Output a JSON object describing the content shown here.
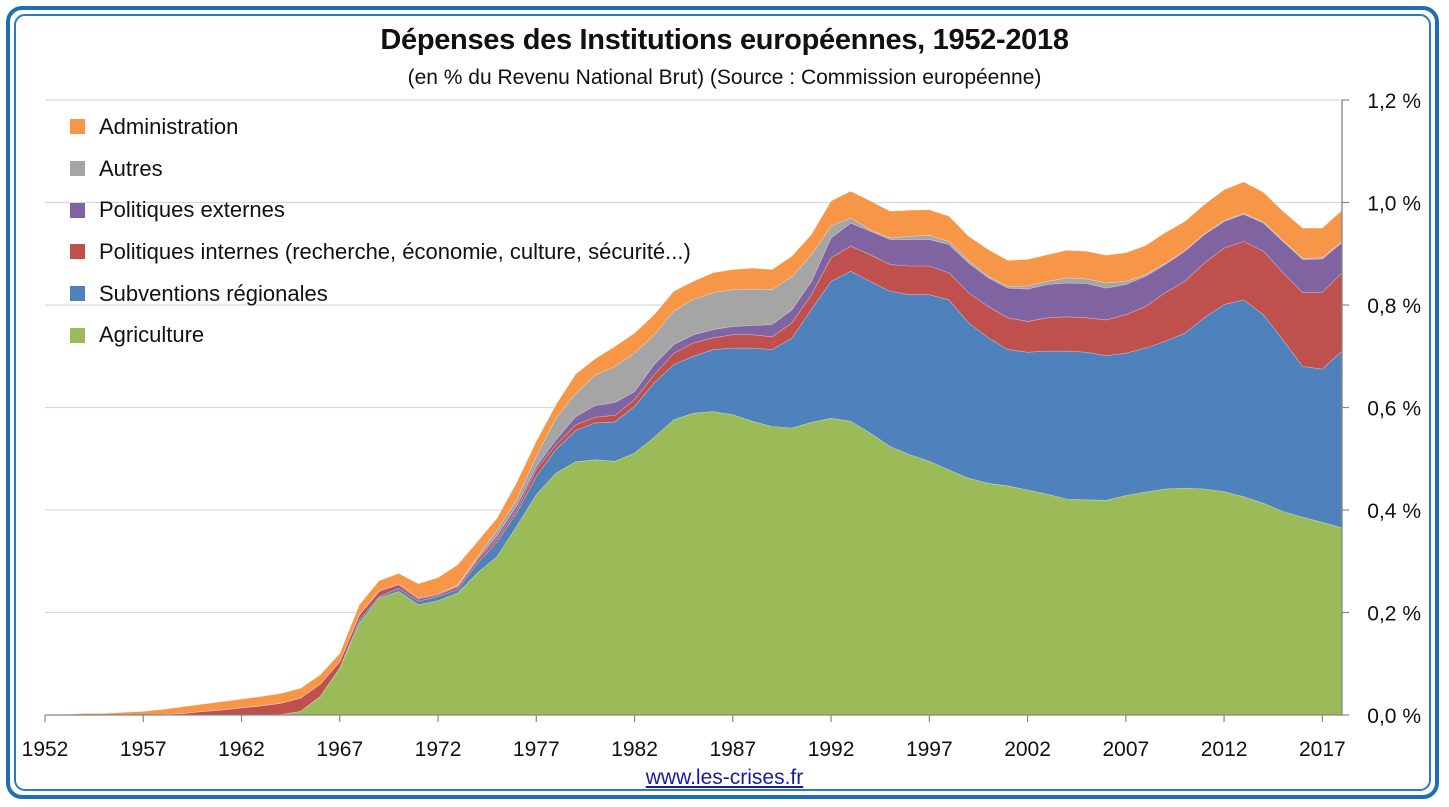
{
  "title": "Dépenses des Institutions européennes, 1952-2018",
  "subtitle": "(en % du Revenu National Brut) (Source : Commission européenne)",
  "footer_link": "www.les-crises.fr",
  "frame_color": "#1b6fb5",
  "chart_data": {
    "type": "area",
    "stacked": true,
    "title": "Dépenses des Institutions européennes, 1952-2018",
    "subtitle": "(en % du Revenu National Brut) (Source : Commission européenne)",
    "xlabel": "",
    "ylabel": "",
    "x": [
      1952,
      1953,
      1954,
      1955,
      1956,
      1957,
      1958,
      1959,
      1960,
      1961,
      1962,
      1963,
      1964,
      1965,
      1966,
      1967,
      1968,
      1969,
      1970,
      1971,
      1972,
      1973,
      1974,
      1975,
      1976,
      1977,
      1978,
      1979,
      1980,
      1981,
      1982,
      1983,
      1984,
      1985,
      1986,
      1987,
      1988,
      1989,
      1990,
      1991,
      1992,
      1993,
      1994,
      1995,
      1996,
      1997,
      1998,
      1999,
      2000,
      2001,
      2002,
      2003,
      2004,
      2005,
      2006,
      2007,
      2008,
      2009,
      2010,
      2011,
      2012,
      2013,
      2014,
      2015,
      2016,
      2017,
      2018
    ],
    "xticks": [
      "1952",
      "1957",
      "1962",
      "1967",
      "1972",
      "1977",
      "1982",
      "1987",
      "1992",
      "1997",
      "2002",
      "2007",
      "2012",
      "2017"
    ],
    "ylim": [
      0,
      1.2
    ],
    "yticks": [
      0,
      0.2,
      0.4,
      0.6,
      0.8,
      1.0,
      1.2
    ],
    "ytick_labels": [
      "0,0 %",
      "0,2 %",
      "0,4 %",
      "0,6 %",
      "0,8 %",
      "1,0 %",
      "1,2 %"
    ],
    "y_axis_side": "right",
    "grid": true,
    "legend_position": "top-left",
    "series": [
      {
        "name": "Agriculture",
        "color": "#9bbb59",
        "values": [
          0,
          0,
          0,
          0,
          0,
          0,
          0,
          0,
          0,
          0,
          0,
          0,
          0.001,
          0.007,
          0.036,
          0.091,
          0.179,
          0.228,
          0.241,
          0.215,
          0.223,
          0.238,
          0.277,
          0.309,
          0.368,
          0.43,
          0.472,
          0.494,
          0.498,
          0.495,
          0.511,
          0.542,
          0.576,
          0.589,
          0.592,
          0.586,
          0.573,
          0.563,
          0.56,
          0.571,
          0.579,
          0.573,
          0.55,
          0.524,
          0.508,
          0.495,
          0.478,
          0.462,
          0.452,
          0.447,
          0.439,
          0.431,
          0.421,
          0.42,
          0.419,
          0.428,
          0.435,
          0.441,
          0.443,
          0.441,
          0.436,
          0.426,
          0.413,
          0.397,
          0.386,
          0.376,
          0.365
        ]
      },
      {
        "name": "Subventions régionales",
        "color": "#4f81bd",
        "values": [
          0,
          0,
          0,
          0,
          0,
          0,
          0,
          0,
          0,
          0,
          0,
          0,
          0,
          0,
          0,
          0.001,
          0.006,
          0.003,
          0.006,
          0.007,
          0.008,
          0.007,
          0.019,
          0.029,
          0.026,
          0.036,
          0.046,
          0.061,
          0.072,
          0.077,
          0.091,
          0.106,
          0.108,
          0.111,
          0.121,
          0.13,
          0.143,
          0.15,
          0.175,
          0.22,
          0.267,
          0.293,
          0.296,
          0.303,
          0.312,
          0.325,
          0.332,
          0.303,
          0.284,
          0.266,
          0.269,
          0.279,
          0.289,
          0.288,
          0.282,
          0.278,
          0.281,
          0.288,
          0.302,
          0.334,
          0.365,
          0.384,
          0.368,
          0.335,
          0.294,
          0.299,
          0.345
        ]
      },
      {
        "name": "Politiques internes (recherche, économie, culture, sécurité...)",
        "color": "#c0504d",
        "values": [
          0,
          0,
          0,
          0,
          0,
          0,
          0.001,
          0.003,
          0.007,
          0.01,
          0.014,
          0.018,
          0.022,
          0.026,
          0.024,
          0.012,
          0.01,
          0.01,
          0.007,
          0.004,
          0.003,
          0.005,
          0.006,
          0.006,
          0.006,
          0.013,
          0.009,
          0.011,
          0.011,
          0.013,
          0.013,
          0.016,
          0.022,
          0.026,
          0.023,
          0.026,
          0.026,
          0.025,
          0.03,
          0.029,
          0.046,
          0.049,
          0.052,
          0.052,
          0.056,
          0.056,
          0.053,
          0.059,
          0.061,
          0.062,
          0.06,
          0.065,
          0.067,
          0.067,
          0.07,
          0.075,
          0.081,
          0.095,
          0.101,
          0.107,
          0.11,
          0.114,
          0.124,
          0.131,
          0.144,
          0.15,
          0.153
        ]
      },
      {
        "name": "Politiques externes",
        "color": "#8064a2",
        "values": [
          0,
          0,
          0,
          0,
          0,
          0,
          0,
          0,
          0,
          0,
          0,
          0,
          0,
          0,
          0,
          0,
          0.001,
          0.002,
          0.002,
          0.002,
          0.002,
          0.002,
          0.003,
          0.006,
          0.008,
          0.006,
          0.01,
          0.016,
          0.023,
          0.025,
          0.016,
          0.02,
          0.017,
          0.016,
          0.016,
          0.016,
          0.018,
          0.024,
          0.025,
          0.026,
          0.039,
          0.045,
          0.046,
          0.049,
          0.052,
          0.052,
          0.055,
          0.058,
          0.056,
          0.058,
          0.063,
          0.065,
          0.066,
          0.067,
          0.062,
          0.059,
          0.059,
          0.055,
          0.059,
          0.0555,
          0.052,
          0.053,
          0.055,
          0.061,
          0.065,
          0.065,
          0.059
        ]
      },
      {
        "name": "Autres",
        "color": "#a5a5a5",
        "values": [
          0,
          0,
          0,
          0,
          0,
          0,
          0,
          0,
          0,
          0,
          0,
          0,
          0,
          0,
          0,
          0,
          0,
          0,
          0,
          0,
          0,
          0.002,
          0.003,
          0.011,
          0.012,
          0.02,
          0.042,
          0.045,
          0.059,
          0.07,
          0.075,
          0.058,
          0.065,
          0.069,
          0.072,
          0.072,
          0.071,
          0.068,
          0.065,
          0.052,
          0.023,
          0.01,
          0.003,
          0.003,
          0.006,
          0.008,
          0.006,
          0.004,
          0.003,
          0.003,
          0.006,
          0.006,
          0.01,
          0.009,
          0.01,
          0.006,
          0.003,
          0.002,
          0.001,
          0.0015,
          0.002,
          0.002,
          0.002,
          0.002,
          0.002,
          0.002,
          0.002
        ]
      },
      {
        "name": "Administration",
        "color": "#f79646",
        "values": [
          0,
          0.001,
          0.003,
          0.003,
          0.005,
          0.007,
          0.01,
          0.013,
          0.014,
          0.016,
          0.017,
          0.018,
          0.019,
          0.019,
          0.018,
          0.016,
          0.019,
          0.019,
          0.02,
          0.028,
          0.032,
          0.039,
          0.03,
          0.023,
          0.033,
          0.029,
          0.026,
          0.038,
          0.032,
          0.039,
          0.039,
          0.039,
          0.039,
          0.035,
          0.039,
          0.039,
          0.041,
          0.039,
          0.04,
          0.0395,
          0.049,
          0.052,
          0.056,
          0.052,
          0.051,
          0.05,
          0.049,
          0.048,
          0.052,
          0.051,
          0.052,
          0.052,
          0.054,
          0.054,
          0.054,
          0.056,
          0.057,
          0.06,
          0.057,
          0.057,
          0.06,
          0.061,
          0.058,
          0.057,
          0.059,
          0.058,
          0.061
        ]
      }
    ]
  },
  "legend": [
    {
      "label": "Administration",
      "color": "#f79646"
    },
    {
      "label": "Autres",
      "color": "#a5a5a5"
    },
    {
      "label": "Politiques externes",
      "color": "#8064a2"
    },
    {
      "label": "Politiques internes (recherche, économie, culture, sécurité...)",
      "color": "#c0504d"
    },
    {
      "label": "Subventions régionales",
      "color": "#4f81bd"
    },
    {
      "label": "Agriculture",
      "color": "#9bbb59"
    }
  ]
}
